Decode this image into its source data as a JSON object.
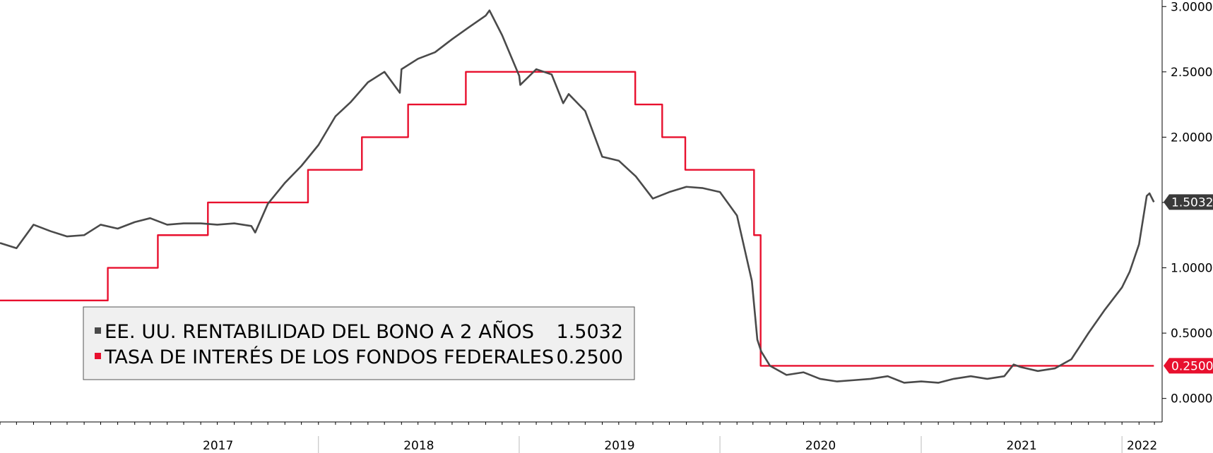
{
  "chart_data": {
    "type": "line",
    "title": "",
    "xlabel": "",
    "ylabel": "",
    "x_ticks": [
      "2017",
      "2018",
      "2019",
      "2020",
      "2021",
      "2022"
    ],
    "y_ticks": [
      "0.0000",
      "0.5000",
      "1.0000",
      "1.5000",
      "2.0000",
      "2.5000",
      "3.0000"
    ],
    "ylim": [
      -0.18,
      3.05
    ],
    "xlim": [
      "2016-06-01",
      "2022-03-15"
    ],
    "grid": false,
    "legend_position": "bottom-left",
    "series": [
      {
        "name": "EE. UU. RENTABILIDAD DEL BONO A 2 AÑOS",
        "last_value": "1.5032",
        "color": "#4a4a4a",
        "kind": "line",
        "points": [
          [
            "2016-06-01",
            1.19
          ],
          [
            "2016-07-01",
            1.15
          ],
          [
            "2016-08-01",
            1.33
          ],
          [
            "2016-09-01",
            1.28
          ],
          [
            "2016-10-01",
            1.24
          ],
          [
            "2016-11-01",
            1.25
          ],
          [
            "2016-12-01",
            1.33
          ],
          [
            "2017-01-01",
            1.3
          ],
          [
            "2017-02-01",
            1.35
          ],
          [
            "2017-03-01",
            1.38
          ],
          [
            "2017-04-01",
            1.33
          ],
          [
            "2017-05-01",
            1.34
          ],
          [
            "2017-06-01",
            1.34
          ],
          [
            "2017-07-01",
            1.33
          ],
          [
            "2017-08-01",
            1.34
          ],
          [
            "2017-09-01",
            1.32
          ],
          [
            "2017-09-08",
            1.27
          ],
          [
            "2017-10-01",
            1.49
          ],
          [
            "2017-11-01",
            1.65
          ],
          [
            "2017-12-01",
            1.78
          ],
          [
            "2018-01-01",
            1.94
          ],
          [
            "2018-02-01",
            2.16
          ],
          [
            "2018-03-01",
            2.27
          ],
          [
            "2018-04-01",
            2.42
          ],
          [
            "2018-05-01",
            2.5
          ],
          [
            "2018-05-29",
            2.34
          ],
          [
            "2018-06-01",
            2.52
          ],
          [
            "2018-07-01",
            2.6
          ],
          [
            "2018-08-01",
            2.65
          ],
          [
            "2018-09-01",
            2.75
          ],
          [
            "2018-10-01",
            2.84
          ],
          [
            "2018-11-01",
            2.93
          ],
          [
            "2018-11-08",
            2.97
          ],
          [
            "2018-12-01",
            2.78
          ],
          [
            "2019-01-01",
            2.47
          ],
          [
            "2019-01-03",
            2.4
          ],
          [
            "2019-02-01",
            2.52
          ],
          [
            "2019-03-01",
            2.48
          ],
          [
            "2019-03-22",
            2.26
          ],
          [
            "2019-04-01",
            2.33
          ],
          [
            "2019-05-01",
            2.2
          ],
          [
            "2019-06-01",
            1.85
          ],
          [
            "2019-07-01",
            1.82
          ],
          [
            "2019-08-01",
            1.7
          ],
          [
            "2019-09-01",
            1.53
          ],
          [
            "2019-10-01",
            1.58
          ],
          [
            "2019-11-01",
            1.62
          ],
          [
            "2019-12-01",
            1.61
          ],
          [
            "2020-01-01",
            1.58
          ],
          [
            "2020-02-01",
            1.4
          ],
          [
            "2020-02-28",
            0.9
          ],
          [
            "2020-03-09",
            0.45
          ],
          [
            "2020-03-16",
            0.36
          ],
          [
            "2020-04-01",
            0.25
          ],
          [
            "2020-05-01",
            0.18
          ],
          [
            "2020-06-01",
            0.2
          ],
          [
            "2020-07-01",
            0.15
          ],
          [
            "2020-08-01",
            0.13
          ],
          [
            "2020-09-01",
            0.14
          ],
          [
            "2020-10-01",
            0.15
          ],
          [
            "2020-11-01",
            0.17
          ],
          [
            "2020-12-01",
            0.12
          ],
          [
            "2021-01-01",
            0.13
          ],
          [
            "2021-02-01",
            0.12
          ],
          [
            "2021-03-01",
            0.15
          ],
          [
            "2021-04-01",
            0.17
          ],
          [
            "2021-05-01",
            0.15
          ],
          [
            "2021-06-01",
            0.17
          ],
          [
            "2021-06-18",
            0.26
          ],
          [
            "2021-07-01",
            0.24
          ],
          [
            "2021-08-01",
            0.21
          ],
          [
            "2021-09-01",
            0.23
          ],
          [
            "2021-10-01",
            0.3
          ],
          [
            "2021-11-01",
            0.5
          ],
          [
            "2021-12-01",
            0.68
          ],
          [
            "2022-01-01",
            0.85
          ],
          [
            "2022-01-15",
            0.97
          ],
          [
            "2022-02-01",
            1.18
          ],
          [
            "2022-02-15",
            1.55
          ],
          [
            "2022-02-20",
            1.57
          ],
          [
            "2022-02-28",
            1.5032
          ]
        ]
      },
      {
        "name": "TASA DE INTERÉS DE LOS FONDOS FEDERALES",
        "last_value": "0.2500",
        "color": "#e8102e",
        "kind": "step",
        "points": [
          [
            "2016-06-01",
            0.75
          ],
          [
            "2016-12-14",
            1.0
          ],
          [
            "2017-03-15",
            1.25
          ],
          [
            "2017-06-14",
            1.5
          ],
          [
            "2017-12-13",
            1.75
          ],
          [
            "2018-03-21",
            2.0
          ],
          [
            "2018-06-13",
            2.25
          ],
          [
            "2018-09-26",
            2.5
          ],
          [
            "2018-12-19",
            2.5
          ],
          [
            "2019-07-31",
            2.25
          ],
          [
            "2019-09-18",
            2.0
          ],
          [
            "2019-10-30",
            1.75
          ],
          [
            "2020-03-03",
            1.25
          ],
          [
            "2020-03-15",
            0.25
          ],
          [
            "2022-02-28",
            0.25
          ]
        ]
      }
    ]
  }
}
